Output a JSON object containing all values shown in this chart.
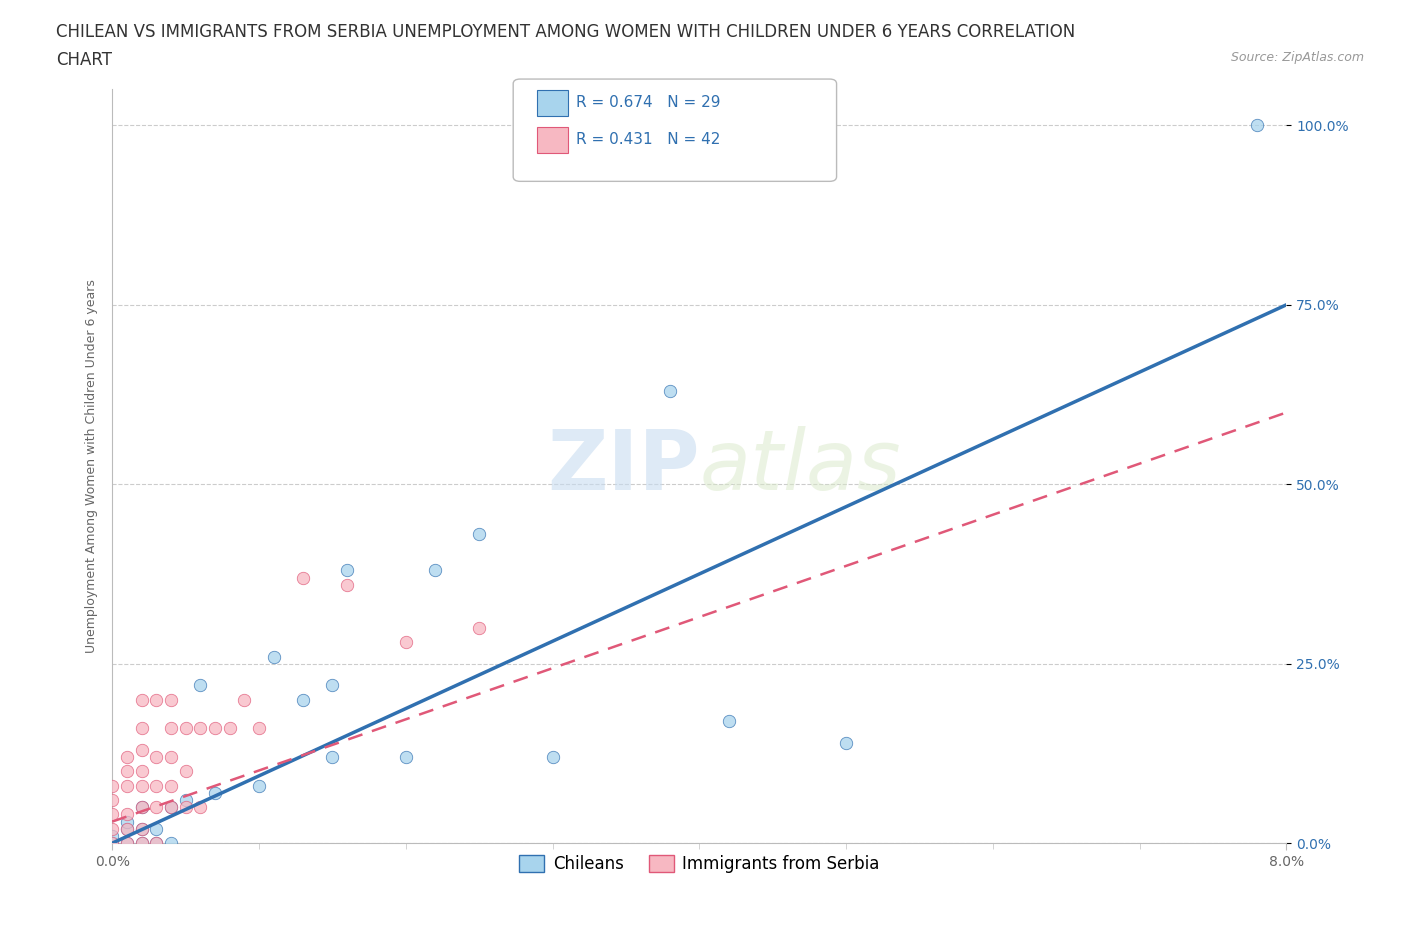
{
  "title_line1": "CHILEAN VS IMMIGRANTS FROM SERBIA UNEMPLOYMENT AMONG WOMEN WITH CHILDREN UNDER 6 YEARS CORRELATION",
  "title_line2": "CHART",
  "source": "Source: ZipAtlas.com",
  "ylabel_label": "Unemployment Among Women with Children Under 6 years",
  "xmin": 0.0,
  "xmax": 0.08,
  "ymin": 0.0,
  "ymax": 1.05,
  "x_tick_labels": [
    "0.0%",
    "8.0%"
  ],
  "y_tick_labels": [
    "0.0%",
    "25.0%",
    "50.0%",
    "75.0%",
    "100.0%"
  ],
  "chileans_R": 0.674,
  "chileans_N": 29,
  "serbia_R": 0.431,
  "serbia_N": 42,
  "chilean_color": "#A8D4ED",
  "serbia_color": "#F7B8C2",
  "chilean_line_color": "#3070B0",
  "serbia_line_color": "#E05878",
  "watermark_zip": "ZIP",
  "watermark_atlas": "atlas",
  "legend_labels": [
    "Chileans",
    "Immigrants from Serbia"
  ],
  "background_color": "#FFFFFF",
  "grid_color": "#CCCCCC",
  "title_fontsize": 12,
  "axis_label_fontsize": 9,
  "tick_fontsize": 10,
  "legend_fontsize": 12,
  "stat_color": "#3070B0",
  "chileans_x": [
    0.0,
    0.0,
    0.001,
    0.001,
    0.001,
    0.002,
    0.002,
    0.002,
    0.003,
    0.003,
    0.004,
    0.004,
    0.005,
    0.006,
    0.007,
    0.01,
    0.011,
    0.013,
    0.015,
    0.015,
    0.016,
    0.02,
    0.022,
    0.025,
    0.03,
    0.038,
    0.042,
    0.05,
    0.078
  ],
  "chileans_y": [
    0.0,
    0.01,
    0.0,
    0.02,
    0.03,
    0.0,
    0.02,
    0.05,
    0.0,
    0.02,
    0.05,
    0.0,
    0.06,
    0.22,
    0.07,
    0.08,
    0.26,
    0.2,
    0.22,
    0.12,
    0.38,
    0.12,
    0.38,
    0.43,
    0.12,
    0.63,
    0.17,
    0.14,
    1.0
  ],
  "serbia_x": [
    0.0,
    0.0,
    0.0,
    0.0,
    0.0,
    0.001,
    0.001,
    0.001,
    0.001,
    0.001,
    0.001,
    0.002,
    0.002,
    0.002,
    0.002,
    0.002,
    0.002,
    0.002,
    0.002,
    0.003,
    0.003,
    0.003,
    0.003,
    0.003,
    0.004,
    0.004,
    0.004,
    0.004,
    0.004,
    0.005,
    0.005,
    0.005,
    0.006,
    0.006,
    0.007,
    0.008,
    0.009,
    0.01,
    0.013,
    0.016,
    0.02,
    0.025
  ],
  "serbia_y": [
    0.0,
    0.02,
    0.04,
    0.06,
    0.08,
    0.0,
    0.02,
    0.04,
    0.08,
    0.1,
    0.12,
    0.0,
    0.02,
    0.05,
    0.08,
    0.1,
    0.13,
    0.16,
    0.2,
    0.0,
    0.05,
    0.08,
    0.12,
    0.2,
    0.05,
    0.08,
    0.12,
    0.16,
    0.2,
    0.05,
    0.1,
    0.16,
    0.05,
    0.16,
    0.16,
    0.16,
    0.2,
    0.16,
    0.37,
    0.36,
    0.28,
    0.3
  ],
  "chilean_line_x0": 0.0,
  "chilean_line_y0": 0.0,
  "chilean_line_x1": 0.08,
  "chilean_line_y1": 0.75,
  "serbia_line_x0": 0.0,
  "serbia_line_y0": 0.03,
  "serbia_line_x1": 0.08,
  "serbia_line_y1": 0.6
}
